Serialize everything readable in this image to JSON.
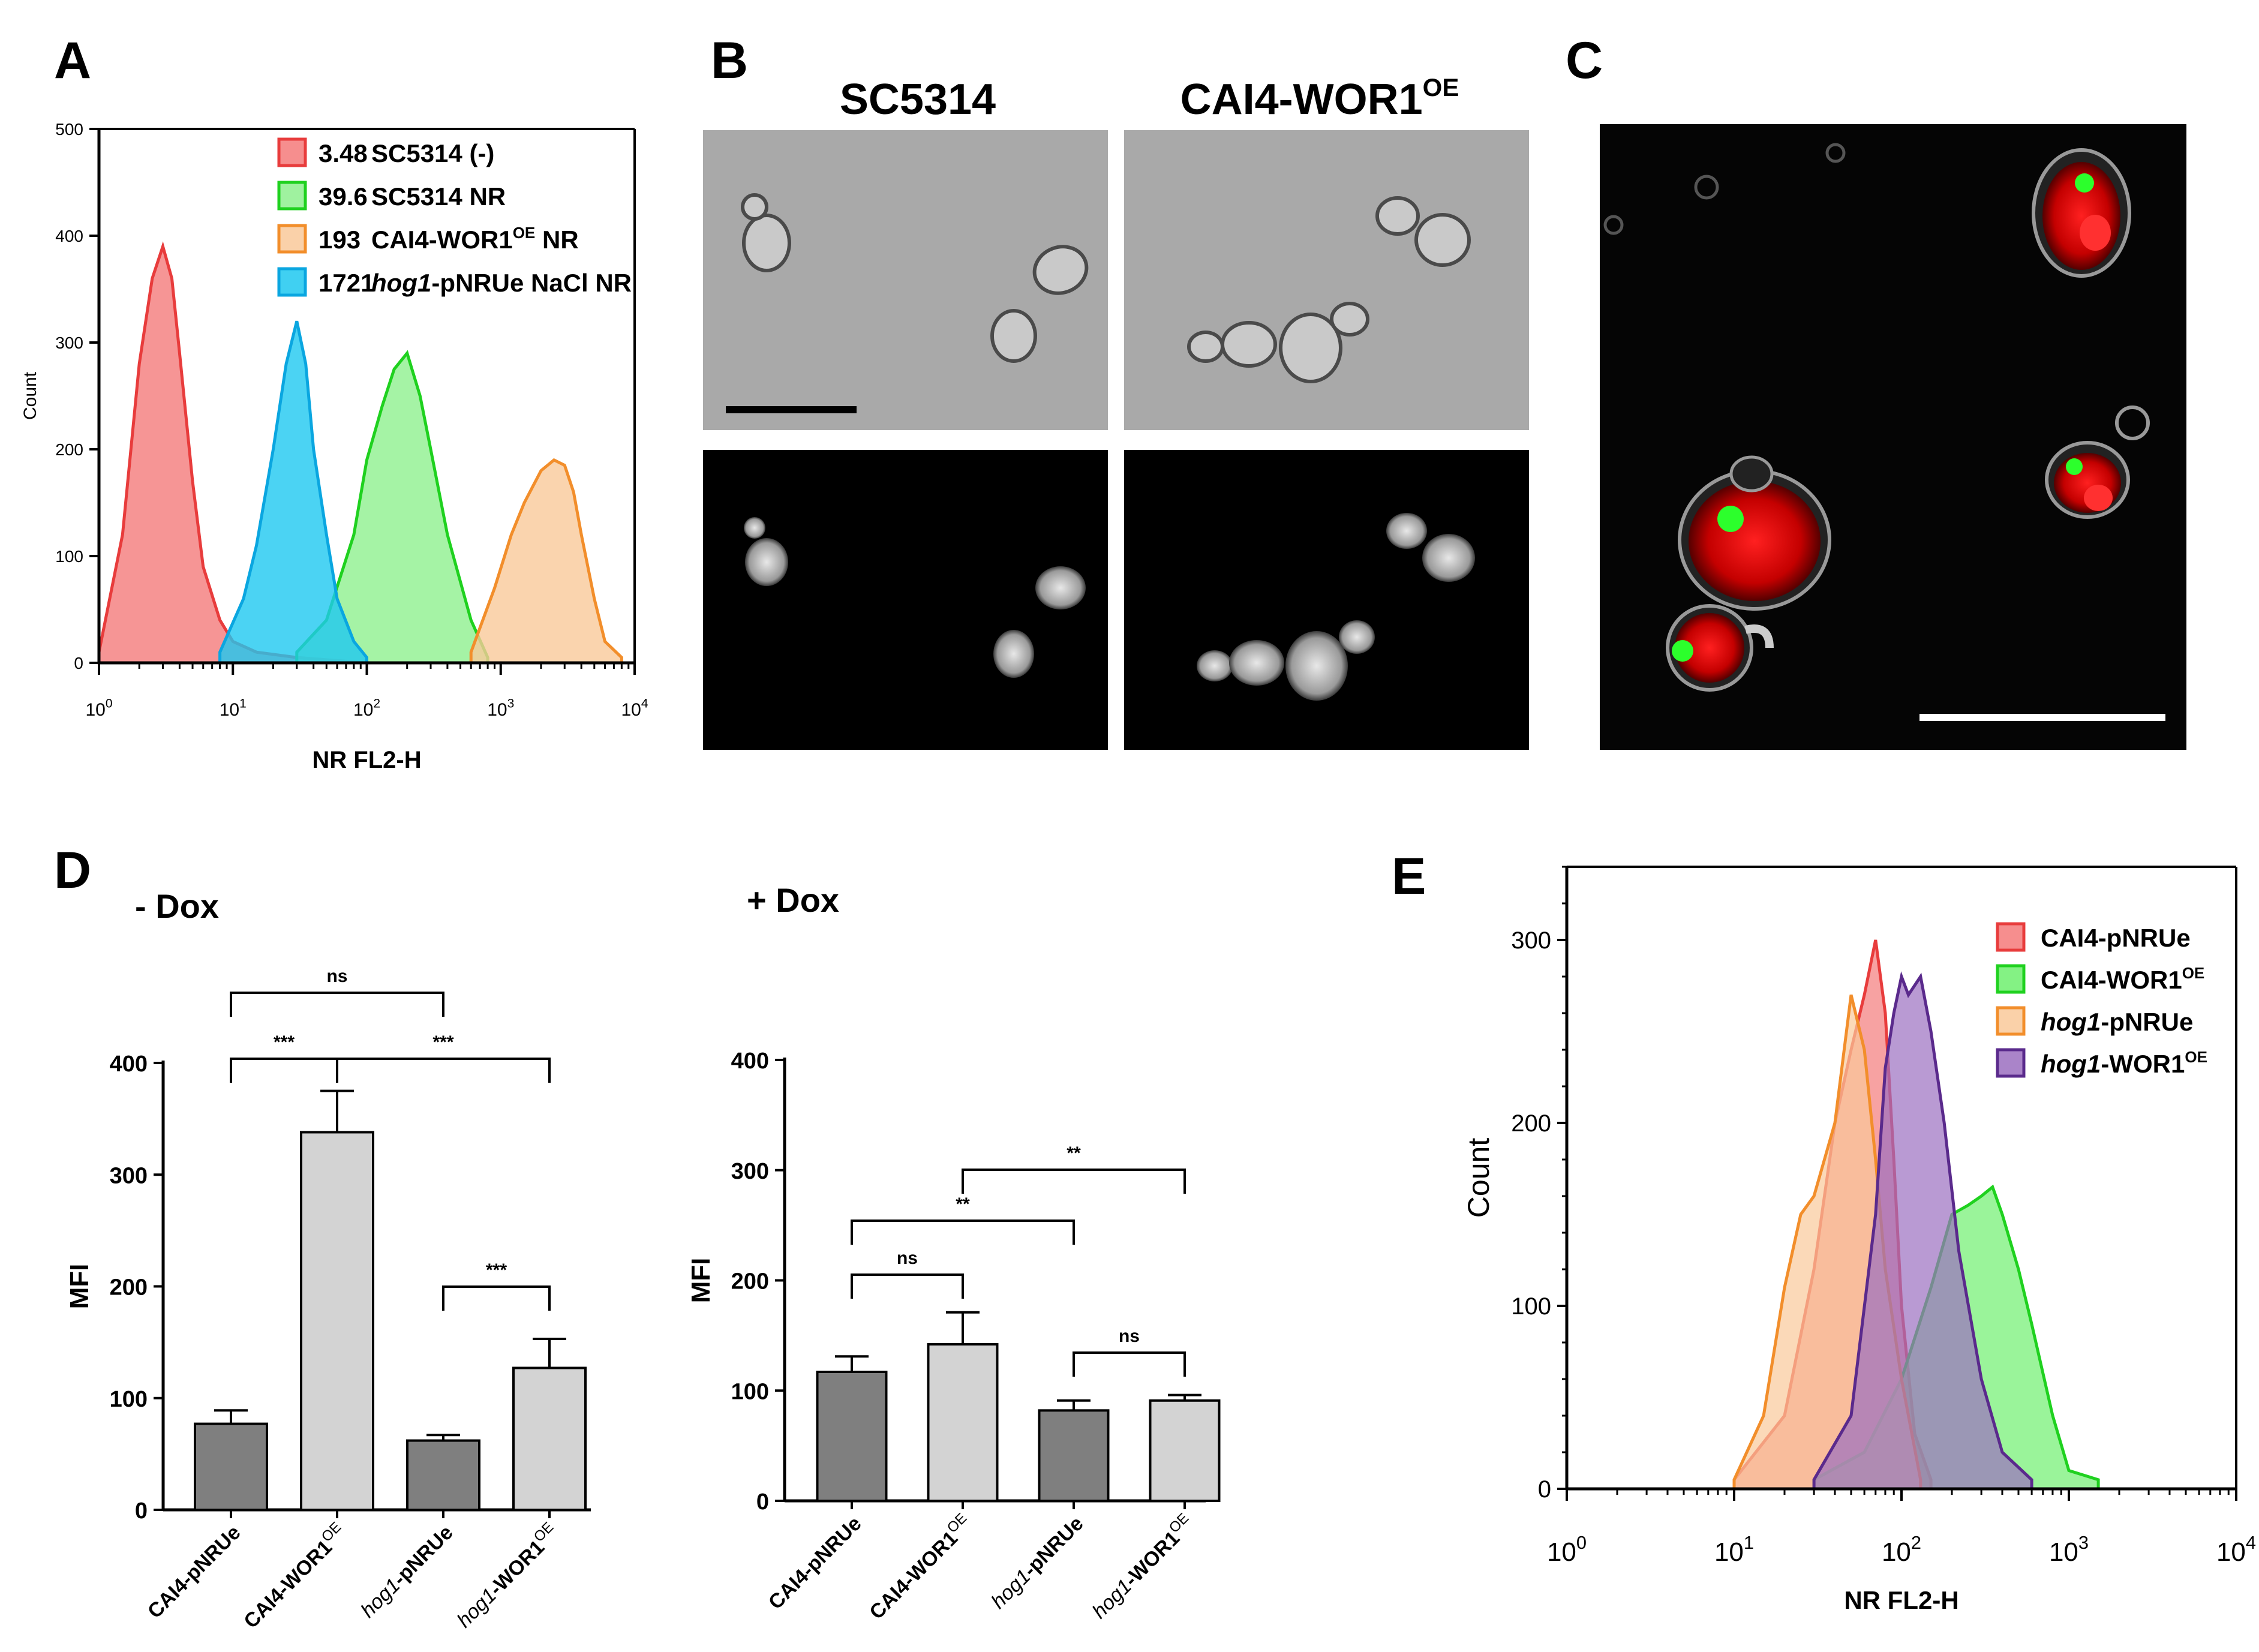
{
  "panels": {
    "A": {
      "letter": "A",
      "ylabel": "Count",
      "xlabel": "NR FL2-H",
      "yticks": [
        "0",
        "100",
        "200",
        "300",
        "400",
        "500"
      ],
      "xticks": [
        {
          "base": "10",
          "exp": "0"
        },
        {
          "base": "10",
          "exp": "1"
        },
        {
          "base": "10",
          "exp": "2"
        },
        {
          "base": "10",
          "exp": "3"
        },
        {
          "base": "10",
          "exp": "4"
        }
      ],
      "legend": [
        {
          "value": "3.48",
          "label": "SC5314 (-)",
          "color": "#f47a7a",
          "edge": "#e83c3c"
        },
        {
          "value": "39.6",
          "label": "SC5314 NR",
          "color": "#8ef08e",
          "edge": "#1fd11f"
        },
        {
          "value": "193",
          "label": "CAI4-WOR1",
          "sup": "OE",
          "label2": " NR",
          "color": "#f9c99a",
          "edge": "#f28e2b"
        },
        {
          "value": "1721",
          "label_italic": "hog1",
          "label": "-pNRUe NaCl NR",
          "color": "#1ec8f0",
          "edge": "#0aa6e0"
        }
      ]
    },
    "B": {
      "letter": "B",
      "col1": "SC5314",
      "col2": "CAI4-WOR1",
      "col2_sup": "OE"
    },
    "C": {
      "letter": "C"
    },
    "D": {
      "letter": "D",
      "left_title": "- Dox",
      "right_title": "+ Dox",
      "ylabel": "MFI",
      "left_yticks": [
        "0",
        "100",
        "200",
        "300",
        "400"
      ],
      "right_yticks": [
        "0",
        "100",
        "200",
        "300",
        "400"
      ],
      "categories": [
        {
          "label": "CAI4-pNRUe"
        },
        {
          "label": "CAI4-WOR1",
          "sup": "OE"
        },
        {
          "italic": "hog1",
          "label": "-pNRUe"
        },
        {
          "italic": "hog1",
          "label": "-WOR1",
          "sup": "OE"
        }
      ],
      "left_sig": [
        {
          "text": "ns",
          "from": 0,
          "to": 2
        },
        {
          "text": "***",
          "from": 0,
          "to": 1
        },
        {
          "text": "***",
          "from": 1,
          "to": 3
        },
        {
          "text": "***",
          "from": 2,
          "to": 3
        }
      ],
      "right_sig": [
        {
          "text": "**",
          "from": 1,
          "to": 3
        },
        {
          "text": "**",
          "from": 0,
          "to": 2
        },
        {
          "text": "ns",
          "from": 0,
          "to": 1
        },
        {
          "text": "ns",
          "from": 2,
          "to": 3
        }
      ]
    },
    "E": {
      "letter": "E",
      "ylabel": "Count",
      "xlabel": "NR FL2-H",
      "yticks": [
        "0",
        "100",
        "200",
        "300"
      ],
      "xticks": [
        {
          "base": "10",
          "exp": "0"
        },
        {
          "base": "10",
          "exp": "1"
        },
        {
          "base": "10",
          "exp": "2"
        },
        {
          "base": "10",
          "exp": "3"
        },
        {
          "base": "10",
          "exp": "4"
        }
      ],
      "legend": [
        {
          "label": "CAI4-pNRUe",
          "color": "#f47a7a",
          "edge": "#e83c3c"
        },
        {
          "label": "CAI4-WOR1",
          "sup": "OE",
          "color": "#6ff06f",
          "edge": "#1fd11f"
        },
        {
          "italic": "hog1",
          "label": "-pNRUe",
          "color": "#f9c99a",
          "edge": "#f28e2b"
        },
        {
          "italic": "hog1",
          "label": "-WOR1",
          "sup": "OE",
          "color": "#9b6fc0",
          "edge": "#5a2a8c"
        }
      ]
    }
  },
  "chart_data": [
    {
      "type": "area",
      "panel": "A",
      "xlabel": "NR FL2-H",
      "ylabel": "Count",
      "x_scale": "log",
      "xlim": [
        1,
        10000
      ],
      "ylim": [
        0,
        500
      ],
      "series": [
        {
          "name": "SC5314 (-)",
          "mfi": 3.48,
          "x": [
            1,
            1.5,
            2,
            2.5,
            3,
            3.5,
            4,
            5,
            6,
            8,
            10,
            15,
            30,
            100
          ],
          "y": [
            10,
            120,
            280,
            360,
            390,
            360,
            290,
            170,
            90,
            40,
            20,
            10,
            5,
            0
          ]
        },
        {
          "name": "SC5314 NR",
          "mfi": 39.6,
          "x": [
            30,
            50,
            80,
            100,
            130,
            160,
            200,
            250,
            300,
            400,
            600,
            800
          ],
          "y": [
            10,
            40,
            120,
            190,
            240,
            275,
            290,
            250,
            200,
            120,
            40,
            5
          ]
        },
        {
          "name": "CAI4-WOR1OE NR",
          "mfi": 193,
          "x": [
            600,
            900,
            1200,
            1500,
            2000,
            2500,
            3000,
            3500,
            4000,
            5000,
            6000,
            8000
          ],
          "y": [
            10,
            70,
            120,
            150,
            180,
            190,
            185,
            160,
            120,
            60,
            20,
            5
          ]
        },
        {
          "name": "hog1-pNRUe NaCl NR",
          "mfi": 1721,
          "x": [
            8,
            12,
            15,
            20,
            25,
            30,
            35,
            40,
            50,
            60,
            80,
            100
          ],
          "y": [
            10,
            60,
            110,
            200,
            280,
            320,
            280,
            200,
            120,
            60,
            20,
            5
          ]
        }
      ]
    },
    {
      "type": "bar",
      "panel": "D - Dox",
      "ylabel": "MFI",
      "ylim": [
        0,
        400
      ],
      "categories": [
        "CAI4-pNRUe",
        "CAI4-WOR1OE",
        "hog1-pNRUe",
        "hog1-WOR1OE"
      ],
      "values": [
        77,
        338,
        62,
        127
      ],
      "errors": [
        12,
        37,
        5,
        26
      ],
      "colors": [
        "#7f7f7f",
        "#d3d3d3",
        "#7f7f7f",
        "#d3d3d3"
      ]
    },
    {
      "type": "bar",
      "panel": "D + Dox",
      "ylabel": "MFI",
      "ylim": [
        0,
        400
      ],
      "categories": [
        "CAI4-pNRUe",
        "CAI4-WOR1OE",
        "hog1-pNRUe",
        "hog1-WOR1OE"
      ],
      "values": [
        117,
        142,
        82,
        91
      ],
      "errors": [
        14,
        29,
        9,
        5
      ],
      "colors": [
        "#7f7f7f",
        "#d3d3d3",
        "#7f7f7f",
        "#d3d3d3"
      ]
    },
    {
      "type": "area",
      "panel": "E",
      "xlabel": "NR FL2-H",
      "ylabel": "Count",
      "x_scale": "log",
      "xlim": [
        1,
        10000
      ],
      "ylim": [
        0,
        340
      ],
      "series": [
        {
          "name": "CAI4-pNRUe",
          "x": [
            10,
            20,
            30,
            40,
            50,
            60,
            70,
            80,
            90,
            100,
            120,
            150
          ],
          "y": [
            5,
            40,
            120,
            200,
            240,
            270,
            300,
            260,
            180,
            100,
            30,
            5
          ]
        },
        {
          "name": "CAI4-WOR1OE",
          "x": [
            30,
            60,
            100,
            150,
            200,
            250,
            300,
            350,
            400,
            500,
            600,
            800,
            1000,
            1500
          ],
          "y": [
            5,
            20,
            60,
            110,
            150,
            155,
            160,
            165,
            150,
            120,
            90,
            40,
            10,
            5
          ]
        },
        {
          "name": "hog1-pNRUe",
          "x": [
            10,
            15,
            20,
            25,
            30,
            40,
            50,
            60,
            70,
            80,
            100,
            130
          ],
          "y": [
            5,
            40,
            110,
            150,
            160,
            200,
            270,
            240,
            180,
            120,
            60,
            5
          ]
        },
        {
          "name": "hog1-WOR1OE",
          "x": [
            30,
            50,
            70,
            80,
            90,
            100,
            110,
            130,
            150,
            180,
            220,
            300,
            400,
            600
          ],
          "y": [
            5,
            40,
            150,
            230,
            260,
            280,
            270,
            280,
            250,
            200,
            130,
            60,
            20,
            5
          ]
        }
      ]
    }
  ]
}
